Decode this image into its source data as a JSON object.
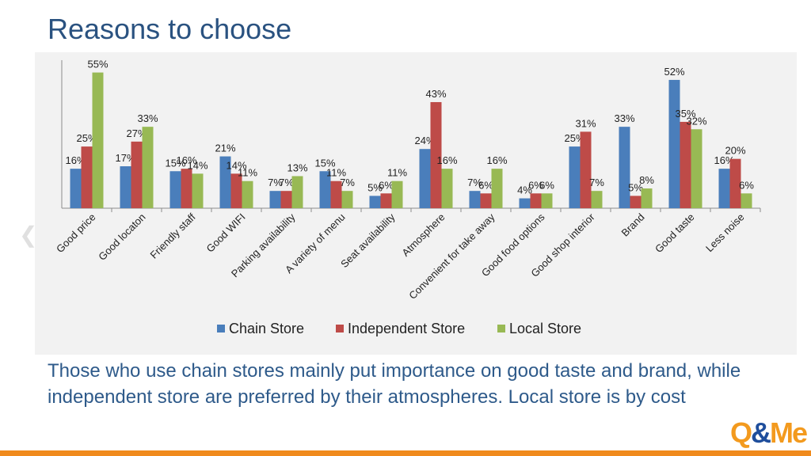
{
  "slide": {
    "title": "Reasons to choose",
    "caption": "Those who use chain stores mainly put importance on good taste and brand, while independent store are preferred by their atmospheres. Local store is by cost",
    "logo_part1": "Q",
    "logo_amp": "&",
    "logo_part2": "Me"
  },
  "colors": {
    "chain": "#4a7ebb",
    "independent": "#be4b48",
    "local": "#98b954",
    "title": "#2a5280",
    "accent_bar": "#f08a1c"
  },
  "chart_data": {
    "type": "bar",
    "title": "",
    "xlabel": "",
    "ylabel": "",
    "ylim": [
      0,
      60
    ],
    "grid": false,
    "legend_position": "bottom",
    "categories": [
      "Good price",
      "Good locaton",
      "Friendly staff",
      "Good WIFI",
      "Parking availability",
      "A variety of menu",
      "Seat availability",
      "Atmosphere",
      "Convenient for take away",
      "Good food options",
      "Good shop interior",
      "Brand",
      "Good taste",
      "Less noise"
    ],
    "series": [
      {
        "name": "Chain Store",
        "color": "#4a7ebb",
        "values": [
          16,
          17,
          15,
          21,
          7,
          15,
          5,
          24,
          7,
          4,
          25,
          33,
          52,
          16
        ],
        "labels": [
          "16%",
          "17%",
          "15%",
          "21%",
          "7%",
          "15%",
          "5%",
          "24%",
          "7%",
          "4%",
          "25%",
          "33%",
          "52%",
          "16%"
        ]
      },
      {
        "name": "Independent Store",
        "color": "#be4b48",
        "values": [
          25,
          27,
          16,
          14,
          7,
          11,
          6,
          43,
          6,
          6,
          31,
          5,
          35,
          20
        ],
        "labels": [
          "25%",
          "27%",
          "16%",
          "14%",
          "7%",
          "11%",
          "6%",
          "43%",
          "6%",
          "6%",
          "31%",
          "5%",
          "35%",
          "20%"
        ]
      },
      {
        "name": "Local Store",
        "color": "#98b954",
        "values": [
          55,
          33,
          14,
          11,
          13,
          7,
          11,
          16,
          16,
          6,
          7,
          8,
          32,
          6
        ],
        "labels": [
          "55%",
          "33%",
          "14%",
          "11%",
          "13%",
          "7%",
          "11%",
          "16%",
          "16%",
          "6%",
          "7%",
          "8%",
          "32%",
          "6%"
        ]
      }
    ]
  }
}
